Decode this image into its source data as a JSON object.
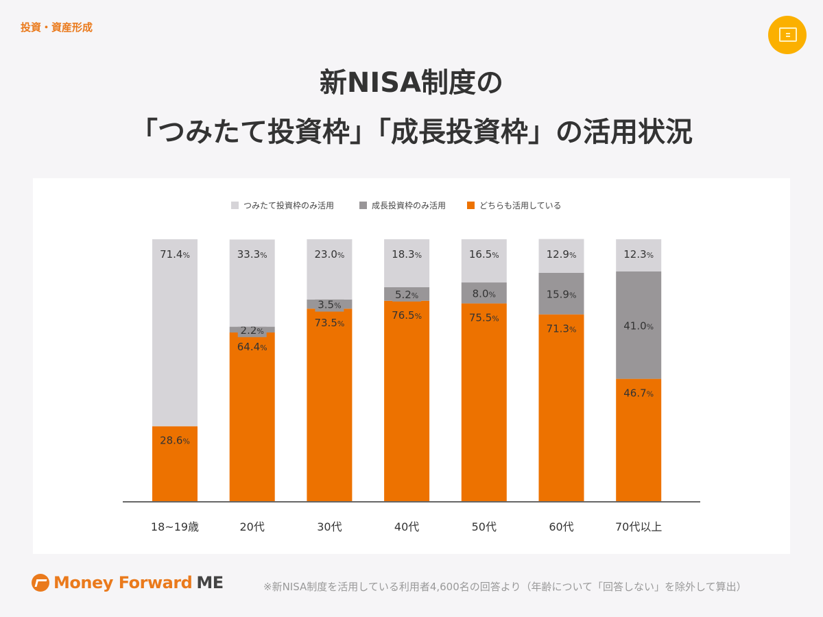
{
  "category_tag": "投資・資産形成",
  "badge_icon": "screen-icon",
  "title_line1": "新NISA制度の",
  "title_line2": "「つみたて投資枠」「成長投資枠」の活用状況",
  "footer": {
    "logo_main": "Money Forward",
    "logo_suffix": "ME",
    "note": "※新NISA制度を活用している利用者4,600名の回答より（年齢について「回答しない」を除外して算出）"
  },
  "chart_data": {
    "type": "bar",
    "stacked": true,
    "orientation": "vertical",
    "unit": "%",
    "ylim": [
      0,
      100
    ],
    "grid": false,
    "legend_position": "top",
    "categories": [
      "18~19歳",
      "20代",
      "30代",
      "40代",
      "50代",
      "60代",
      "70代以上"
    ],
    "series": [
      {
        "name": "どちらも活用している",
        "color": "#ed7200",
        "values": [
          28.6,
          64.4,
          73.5,
          76.5,
          75.5,
          71.3,
          46.7
        ]
      },
      {
        "name": "成長投資枠のみ活用",
        "color": "#999698",
        "values": [
          null,
          2.2,
          3.5,
          5.2,
          8.0,
          15.9,
          41.0
        ]
      },
      {
        "name": "つみたて投資枠のみ活用",
        "color": "#d6d4d8",
        "values": [
          71.4,
          33.3,
          23.0,
          18.3,
          16.5,
          12.9,
          12.3
        ]
      }
    ],
    "legend_order": [
      "つみたて投資枠のみ活用",
      "成長投資枠のみ活用",
      "どちらも活用している"
    ]
  }
}
